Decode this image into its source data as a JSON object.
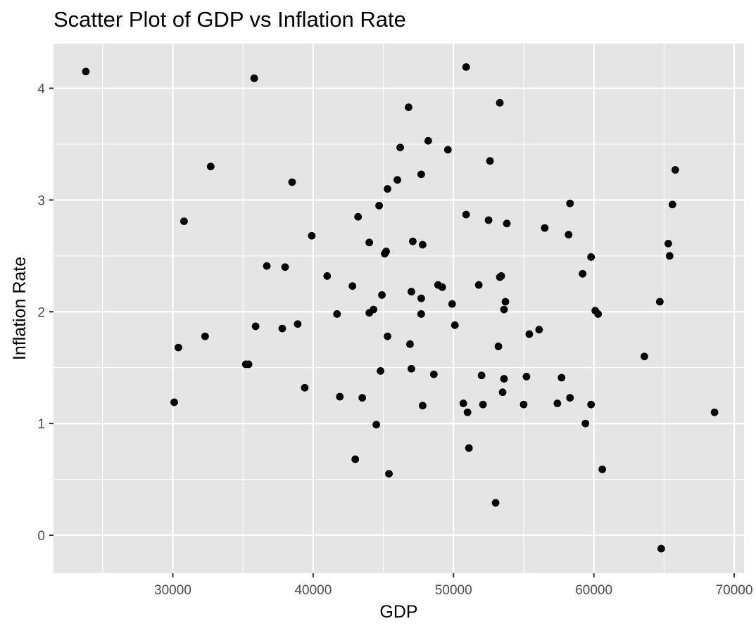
{
  "chart_data": {
    "type": "scatter",
    "title": "Scatter Plot of GDP vs Inflation Rate",
    "xlabel": "GDP",
    "ylabel": "Inflation Rate",
    "xlim": [
      21500,
      70700
    ],
    "ylim": [
      -0.34,
      4.4
    ],
    "x_ticks": [
      30000,
      40000,
      50000,
      60000,
      70000
    ],
    "y_ticks": [
      0,
      1,
      2,
      3,
      4
    ],
    "grid": true,
    "colors": {
      "panel": "#e5e5e5",
      "grid": "#ffffff",
      "point": "#000000"
    },
    "points": [
      {
        "x": 23800,
        "y": 4.15
      },
      {
        "x": 30100,
        "y": 1.19
      },
      {
        "x": 30400,
        "y": 1.68
      },
      {
        "x": 30800,
        "y": 2.81
      },
      {
        "x": 32300,
        "y": 1.78
      },
      {
        "x": 32700,
        "y": 3.3
      },
      {
        "x": 35200,
        "y": 1.53
      },
      {
        "x": 35400,
        "y": 1.53
      },
      {
        "x": 35800,
        "y": 4.09
      },
      {
        "x": 35900,
        "y": 1.87
      },
      {
        "x": 36700,
        "y": 2.41
      },
      {
        "x": 37800,
        "y": 1.85
      },
      {
        "x": 38000,
        "y": 2.4
      },
      {
        "x": 38500,
        "y": 3.16
      },
      {
        "x": 38900,
        "y": 1.89
      },
      {
        "x": 39400,
        "y": 1.32
      },
      {
        "x": 39900,
        "y": 2.68
      },
      {
        "x": 41000,
        "y": 2.32
      },
      {
        "x": 41700,
        "y": 1.98
      },
      {
        "x": 41900,
        "y": 1.24
      },
      {
        "x": 42800,
        "y": 2.23
      },
      {
        "x": 43000,
        "y": 0.68
      },
      {
        "x": 43200,
        "y": 2.85
      },
      {
        "x": 43500,
        "y": 1.23
      },
      {
        "x": 44000,
        "y": 1.99
      },
      {
        "x": 44000,
        "y": 2.62
      },
      {
        "x": 44300,
        "y": 2.02
      },
      {
        "x": 44500,
        "y": 0.99
      },
      {
        "x": 44700,
        "y": 2.95
      },
      {
        "x": 44800,
        "y": 1.47
      },
      {
        "x": 44900,
        "y": 2.15
      },
      {
        "x": 45100,
        "y": 2.52
      },
      {
        "x": 45200,
        "y": 2.54
      },
      {
        "x": 45300,
        "y": 3.1
      },
      {
        "x": 45300,
        "y": 1.78
      },
      {
        "x": 45400,
        "y": 0.55
      },
      {
        "x": 46000,
        "y": 3.18
      },
      {
        "x": 46200,
        "y": 3.47
      },
      {
        "x": 46800,
        "y": 3.83
      },
      {
        "x": 46900,
        "y": 1.71
      },
      {
        "x": 47000,
        "y": 1.49
      },
      {
        "x": 47000,
        "y": 2.18
      },
      {
        "x": 47100,
        "y": 2.63
      },
      {
        "x": 47700,
        "y": 3.23
      },
      {
        "x": 47700,
        "y": 2.12
      },
      {
        "x": 47700,
        "y": 1.98
      },
      {
        "x": 47800,
        "y": 2.6
      },
      {
        "x": 47800,
        "y": 1.16
      },
      {
        "x": 48200,
        "y": 3.53
      },
      {
        "x": 48600,
        "y": 1.44
      },
      {
        "x": 48900,
        "y": 2.24
      },
      {
        "x": 49200,
        "y": 2.22
      },
      {
        "x": 49600,
        "y": 3.45
      },
      {
        "x": 49900,
        "y": 2.07
      },
      {
        "x": 50100,
        "y": 1.88
      },
      {
        "x": 50700,
        "y": 1.18
      },
      {
        "x": 50900,
        "y": 4.19
      },
      {
        "x": 50900,
        "y": 2.87
      },
      {
        "x": 51000,
        "y": 1.1
      },
      {
        "x": 51100,
        "y": 0.78
      },
      {
        "x": 51800,
        "y": 2.24
      },
      {
        "x": 52000,
        "y": 1.43
      },
      {
        "x": 52100,
        "y": 1.17
      },
      {
        "x": 52500,
        "y": 2.82
      },
      {
        "x": 52600,
        "y": 3.35
      },
      {
        "x": 53000,
        "y": 0.29
      },
      {
        "x": 53200,
        "y": 1.69
      },
      {
        "x": 53300,
        "y": 2.31
      },
      {
        "x": 53300,
        "y": 3.87
      },
      {
        "x": 53400,
        "y": 2.32
      },
      {
        "x": 53500,
        "y": 1.28
      },
      {
        "x": 53600,
        "y": 1.4
      },
      {
        "x": 53600,
        "y": 2.02
      },
      {
        "x": 53700,
        "y": 2.09
      },
      {
        "x": 53800,
        "y": 2.79
      },
      {
        "x": 55000,
        "y": 1.17
      },
      {
        "x": 55200,
        "y": 1.42
      },
      {
        "x": 55400,
        "y": 1.8
      },
      {
        "x": 56100,
        "y": 1.84
      },
      {
        "x": 56500,
        "y": 2.75
      },
      {
        "x": 57400,
        "y": 1.18
      },
      {
        "x": 57700,
        "y": 1.41
      },
      {
        "x": 58200,
        "y": 2.69
      },
      {
        "x": 58300,
        "y": 2.97
      },
      {
        "x": 58300,
        "y": 1.23
      },
      {
        "x": 59200,
        "y": 2.34
      },
      {
        "x": 59400,
        "y": 1.0
      },
      {
        "x": 59800,
        "y": 2.49
      },
      {
        "x": 59800,
        "y": 1.17
      },
      {
        "x": 60100,
        "y": 2.01
      },
      {
        "x": 60300,
        "y": 1.98
      },
      {
        "x": 60600,
        "y": 0.59
      },
      {
        "x": 63600,
        "y": 1.6
      },
      {
        "x": 64700,
        "y": 2.09
      },
      {
        "x": 64800,
        "y": -0.12
      },
      {
        "x": 65300,
        "y": 2.61
      },
      {
        "x": 65400,
        "y": 2.5
      },
      {
        "x": 65600,
        "y": 2.96
      },
      {
        "x": 65800,
        "y": 3.27
      },
      {
        "x": 68600,
        "y": 1.1
      }
    ]
  }
}
